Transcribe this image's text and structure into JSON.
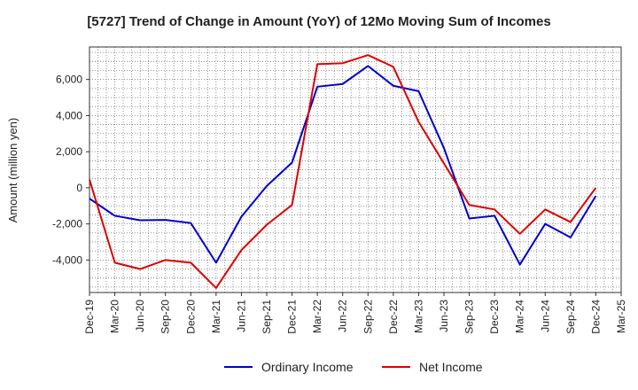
{
  "chart_data": {
    "type": "line",
    "title": "[5727]  Trend of Change in Amount (YoY) of 12Mo Moving Sum of Incomes",
    "xlabel": "",
    "ylabel": "Amount (million yen)",
    "categories": [
      "Dec-19",
      "Mar-20",
      "Jun-20",
      "Sep-20",
      "Dec-20",
      "Mar-21",
      "Jun-21",
      "Sep-21",
      "Dec-21",
      "Mar-22",
      "Jun-22",
      "Sep-22",
      "Dec-22",
      "Mar-23",
      "Jun-23",
      "Sep-23",
      "Dec-23",
      "Mar-24",
      "Jun-24",
      "Sep-24",
      "Dec-24",
      "Mar-25"
    ],
    "ylim": [
      -5800,
      7800
    ],
    "yticks": [
      -4000,
      -2000,
      0,
      2000,
      4000,
      6000
    ],
    "ytick_labels": [
      "-4,000",
      "-2,000",
      "0",
      "2,000",
      "4,000",
      "6,000"
    ],
    "grid": true,
    "legend_position": "bottom",
    "series": [
      {
        "name": "Ordinary Income",
        "color": "#0000cc",
        "values": [
          -600,
          -1550,
          -1800,
          -1780,
          -1950,
          -4150,
          -1600,
          100,
          1400,
          5600,
          5750,
          6750,
          5650,
          5350,
          2200,
          -1700,
          -1550,
          -4250,
          -2000,
          -2750,
          -450,
          null
        ]
      },
      {
        "name": "Net Income",
        "color": "#dd0000",
        "values": [
          450,
          -4150,
          -4500,
          -4000,
          -4150,
          -5550,
          -3450,
          -2050,
          -950,
          6850,
          6900,
          7350,
          6700,
          3650,
          1350,
          -950,
          -1200,
          -2550,
          -1200,
          -1900,
          0,
          null
        ]
      }
    ]
  }
}
